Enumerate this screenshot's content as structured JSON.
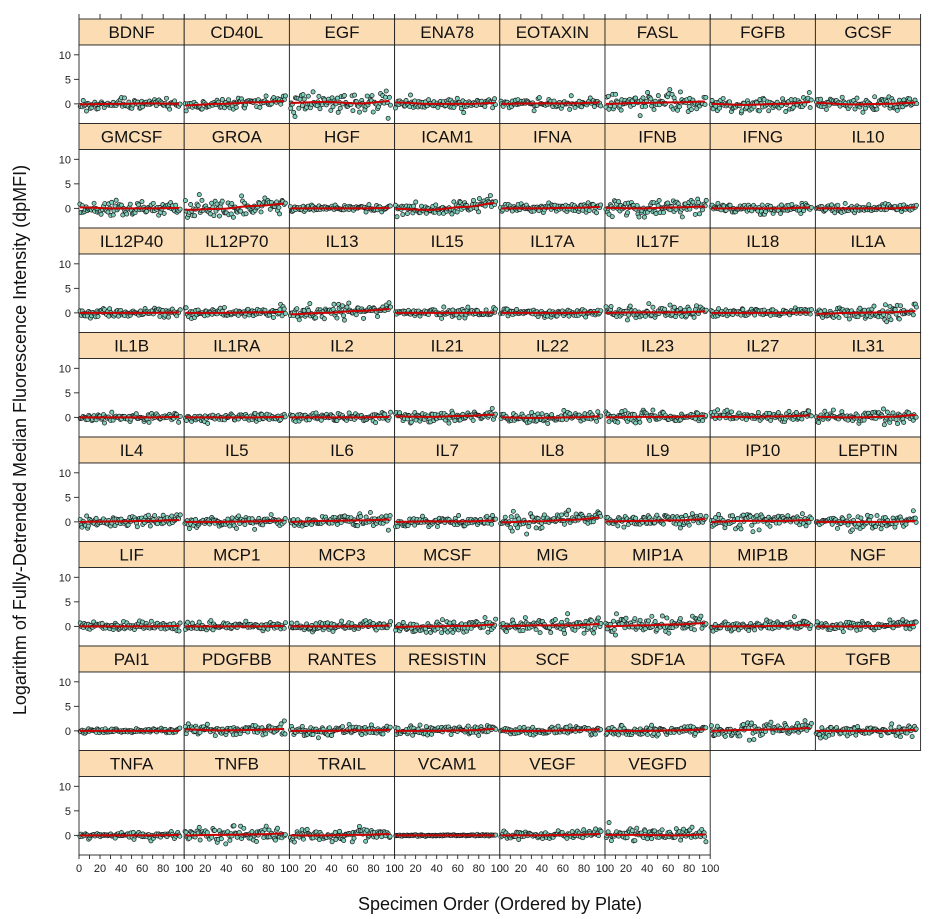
{
  "chart_data": {
    "type": "scatter",
    "layout": "trellis panels, 8 per row",
    "xlabel": "Specimen Order (Ordered by Plate)",
    "ylabel": "Logarithm of Fully-Detrended Median Fluorescence Intensity (dpMFI)",
    "xlim": [
      0,
      100
    ],
    "ylim": [
      -4,
      12
    ],
    "xticks": [
      0,
      20,
      40,
      60,
      80,
      100
    ],
    "xticks_minor": [
      0,
      10,
      20,
      30,
      40,
      50,
      60,
      70,
      80,
      90,
      100
    ],
    "yticks": [
      0,
      5,
      10
    ],
    "grid": false,
    "legend": "none",
    "point_fill": "#7fcdbb",
    "point_edge": "#1a1a1a",
    "smooth_color": "#cc0000",
    "strip_color": "#fbdcb3",
    "n_specimens": 95,
    "panels": [
      {
        "name": "BDNF",
        "spread": 0.55,
        "trend": [
          -0.1,
          0.0,
          0.1,
          0.0
        ]
      },
      {
        "name": "CD40L",
        "spread": 0.6,
        "trend": [
          -0.3,
          0.0,
          0.3,
          0.6
        ]
      },
      {
        "name": "EGF",
        "spread": 0.9,
        "trend": [
          0.2,
          0.4,
          0.1,
          0.6
        ]
      },
      {
        "name": "ENA78",
        "spread": 0.5,
        "trend": [
          0.3,
          0.0,
          0.0,
          0.2
        ]
      },
      {
        "name": "EOTAXIN",
        "spread": 0.5,
        "trend": [
          0.0,
          0.1,
          0.1,
          0.3
        ]
      },
      {
        "name": "FASL",
        "spread": 0.9,
        "trend": [
          0.0,
          0.2,
          0.3,
          0.5
        ]
      },
      {
        "name": "FGFB",
        "spread": 0.7,
        "trend": [
          0.0,
          -0.2,
          0.0,
          0.4
        ]
      },
      {
        "name": "GCSF",
        "spread": 0.6,
        "trend": [
          0.2,
          -0.1,
          0.0,
          0.3
        ]
      },
      {
        "name": "GMCSF",
        "spread": 0.7,
        "trend": [
          0.2,
          0.0,
          0.0,
          0.1
        ]
      },
      {
        "name": "GROA",
        "spread": 0.9,
        "trend": [
          -0.3,
          -0.1,
          0.5,
          1.0
        ]
      },
      {
        "name": "HGF",
        "spread": 0.35,
        "trend": [
          0.0,
          0.0,
          0.0,
          0.1
        ]
      },
      {
        "name": "ICAM1",
        "spread": 0.8,
        "trend": [
          -0.1,
          -0.3,
          0.3,
          1.2
        ]
      },
      {
        "name": "IFNA",
        "spread": 0.5,
        "trend": [
          0.0,
          0.0,
          0.1,
          0.3
        ]
      },
      {
        "name": "IFNB",
        "spread": 0.8,
        "trend": [
          0.1,
          0.0,
          0.2,
          0.4
        ]
      },
      {
        "name": "IFNG",
        "spread": 0.55,
        "trend": [
          0.0,
          0.0,
          0.0,
          0.2
        ]
      },
      {
        "name": "IL10",
        "spread": 0.4,
        "trend": [
          0.0,
          0.0,
          0.0,
          0.2
        ]
      },
      {
        "name": "IL12P40",
        "spread": 0.45,
        "trend": [
          0.0,
          0.0,
          0.0,
          0.1
        ]
      },
      {
        "name": "IL12P70",
        "spread": 0.5,
        "trend": [
          0.0,
          0.0,
          0.1,
          0.2
        ]
      },
      {
        "name": "IL13",
        "spread": 0.8,
        "trend": [
          -0.3,
          0.0,
          0.4,
          0.8
        ]
      },
      {
        "name": "IL15",
        "spread": 0.45,
        "trend": [
          0.0,
          0.0,
          0.0,
          0.1
        ]
      },
      {
        "name": "IL17A",
        "spread": 0.4,
        "trend": [
          0.0,
          0.0,
          0.0,
          0.2
        ]
      },
      {
        "name": "IL17F",
        "spread": 0.6,
        "trend": [
          0.0,
          0.1,
          0.1,
          0.3
        ]
      },
      {
        "name": "IL18",
        "spread": 0.4,
        "trend": [
          0.0,
          0.0,
          0.0,
          0.1
        ]
      },
      {
        "name": "IL1A",
        "spread": 0.7,
        "trend": [
          -0.2,
          0.0,
          0.1,
          0.4
        ]
      },
      {
        "name": "IL1B",
        "spread": 0.45,
        "trend": [
          0.0,
          0.0,
          0.0,
          0.1
        ]
      },
      {
        "name": "IL1RA",
        "spread": 0.45,
        "trend": [
          0.0,
          0.0,
          0.0,
          0.1
        ]
      },
      {
        "name": "IL2",
        "spread": 0.45,
        "trend": [
          0.0,
          0.0,
          0.0,
          0.1
        ]
      },
      {
        "name": "IL21",
        "spread": 0.6,
        "trend": [
          0.2,
          0.1,
          0.3,
          0.6
        ]
      },
      {
        "name": "IL22",
        "spread": 0.5,
        "trend": [
          0.0,
          -0.1,
          0.0,
          0.2
        ]
      },
      {
        "name": "IL23",
        "spread": 0.55,
        "trend": [
          0.0,
          0.1,
          0.1,
          0.3
        ]
      },
      {
        "name": "IL27",
        "spread": 0.55,
        "trend": [
          0.1,
          0.1,
          0.2,
          0.4
        ]
      },
      {
        "name": "IL31",
        "spread": 0.6,
        "trend": [
          0.1,
          0.0,
          0.1,
          0.5
        ]
      },
      {
        "name": "IL4",
        "spread": 0.6,
        "trend": [
          0.0,
          0.1,
          0.2,
          0.4
        ]
      },
      {
        "name": "IL5",
        "spread": 0.55,
        "trend": [
          0.0,
          0.0,
          0.1,
          0.3
        ]
      },
      {
        "name": "IL6",
        "spread": 0.6,
        "trend": [
          0.0,
          0.2,
          0.3,
          0.5
        ]
      },
      {
        "name": "IL7",
        "spread": 0.55,
        "trend": [
          0.0,
          0.1,
          0.1,
          0.3
        ]
      },
      {
        "name": "IL8",
        "spread": 0.85,
        "trend": [
          -0.1,
          0.1,
          0.4,
          0.9
        ]
      },
      {
        "name": "IL9",
        "spread": 0.7,
        "trend": [
          0.1,
          0.2,
          0.3,
          0.6
        ]
      },
      {
        "name": "IP10",
        "spread": 0.7,
        "trend": [
          0.0,
          0.2,
          0.2,
          0.4
        ]
      },
      {
        "name": "LEPTIN",
        "spread": 0.7,
        "trend": [
          0.0,
          0.0,
          0.0,
          0.2
        ]
      },
      {
        "name": "LIF",
        "spread": 0.45,
        "trend": [
          0.0,
          0.0,
          0.0,
          0.1
        ]
      },
      {
        "name": "MCP1",
        "spread": 0.45,
        "trend": [
          0.0,
          0.0,
          0.0,
          0.1
        ]
      },
      {
        "name": "MCP3",
        "spread": 0.45,
        "trend": [
          0.0,
          0.0,
          0.0,
          0.2
        ]
      },
      {
        "name": "MCSF",
        "spread": 0.6,
        "trend": [
          -0.1,
          0.0,
          0.1,
          0.4
        ]
      },
      {
        "name": "MIG",
        "spread": 0.7,
        "trend": [
          0.0,
          0.2,
          0.2,
          0.5
        ]
      },
      {
        "name": "MIP1A",
        "spread": 0.8,
        "trend": [
          0.0,
          0.2,
          0.4,
          0.7
        ]
      },
      {
        "name": "MIP1B",
        "spread": 0.5,
        "trend": [
          0.0,
          0.0,
          0.1,
          0.3
        ]
      },
      {
        "name": "NGF",
        "spread": 0.5,
        "trend": [
          0.0,
          0.0,
          0.1,
          0.3
        ]
      },
      {
        "name": "PAI1",
        "spread": 0.25,
        "trend": [
          0.0,
          0.0,
          0.0,
          0.0
        ]
      },
      {
        "name": "PDGFBB",
        "spread": 0.6,
        "trend": [
          0.3,
          0.1,
          0.2,
          0.4
        ]
      },
      {
        "name": "RANTES",
        "spread": 0.45,
        "trend": [
          0.0,
          0.0,
          0.1,
          0.2
        ]
      },
      {
        "name": "RESISTIN",
        "spread": 0.5,
        "trend": [
          0.0,
          0.0,
          0.1,
          0.4
        ]
      },
      {
        "name": "SCF",
        "spread": 0.5,
        "trend": [
          0.0,
          0.0,
          0.1,
          0.3
        ]
      },
      {
        "name": "SDF1A",
        "spread": 0.5,
        "trend": [
          0.0,
          0.0,
          0.1,
          0.3
        ]
      },
      {
        "name": "TGFA",
        "spread": 0.8,
        "trend": [
          0.0,
          0.2,
          0.3,
          0.6
        ]
      },
      {
        "name": "TGFB",
        "spread": 0.5,
        "trend": [
          0.0,
          0.0,
          0.0,
          0.2
        ]
      },
      {
        "name": "TNFA",
        "spread": 0.3,
        "trend": [
          0.0,
          0.0,
          0.0,
          0.1
        ]
      },
      {
        "name": "TNFB",
        "spread": 0.7,
        "trend": [
          0.0,
          0.1,
          0.2,
          0.4
        ]
      },
      {
        "name": "TRAIL",
        "spread": 0.6,
        "trend": [
          0.0,
          0.0,
          0.1,
          0.3
        ]
      },
      {
        "name": "VCAM1",
        "spread": 0.08,
        "trend": [
          0.0,
          0.0,
          0.0,
          0.0
        ]
      },
      {
        "name": "VEGF",
        "spread": 0.5,
        "trend": [
          0.0,
          0.0,
          0.1,
          0.3
        ]
      },
      {
        "name": "VEGFD",
        "spread": 0.7,
        "trend": [
          0.1,
          0.1,
          0.0,
          0.2
        ]
      }
    ]
  }
}
